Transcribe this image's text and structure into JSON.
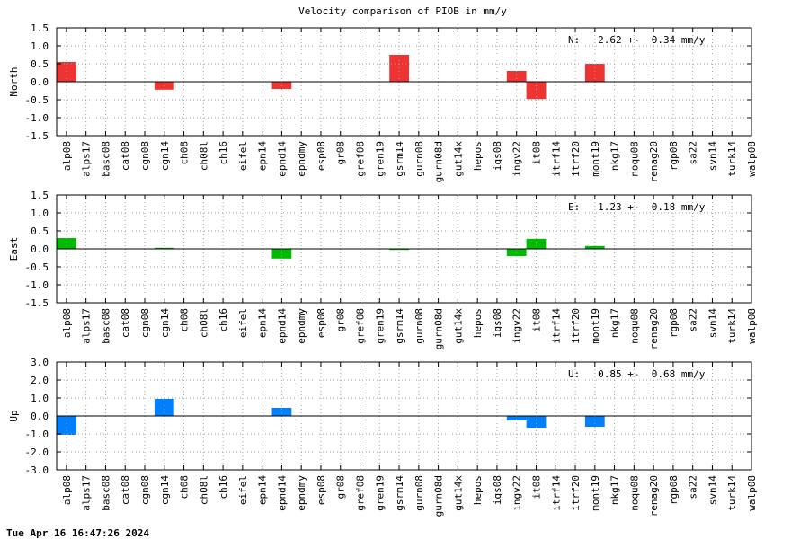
{
  "title": "Velocity comparison of PIOB in mm/y",
  "timestamp": "Tue Apr 16 16:47:26 2024",
  "chart_data": [
    {
      "type": "bar",
      "ylabel": "North",
      "ylim": [
        -1.5,
        1.5
      ],
      "yticks": [
        1.5,
        1.0,
        0.5,
        0.0,
        -0.5,
        -1.0,
        -1.5
      ],
      "ytick_labels": [
        "1.5",
        "1.0",
        "0.5",
        "0.0",
        "-0.5",
        "-1.0",
        "-1.5"
      ],
      "grid": true,
      "color": "#ee3333",
      "stats": "N:   2.62 +-  0.34 mm/y",
      "categories": [
        "alp08",
        "alps17",
        "basc08",
        "cat08",
        "cgn08",
        "cgn14",
        "ch08",
        "ch08l",
        "ch16",
        "eifel",
        "epn14",
        "epnd14",
        "epndmy",
        "esp08",
        "gr08",
        "gref08",
        "gren19",
        "gsrm14",
        "gurn08",
        "gurn08d",
        "gut14x",
        "hepos",
        "igs08",
        "ingv22",
        "it08",
        "itrf14",
        "itrf20",
        "mont19",
        "nkg17",
        "noqu08",
        "renag20",
        "rgp08",
        "sa22",
        "svn14",
        "turk14",
        "walp08"
      ],
      "values": [
        0.55,
        0,
        0,
        0,
        0,
        -0.22,
        0,
        0,
        0,
        0,
        0,
        -0.2,
        0,
        0,
        0,
        0,
        0,
        0.75,
        0,
        0,
        0,
        0,
        0,
        0.3,
        -0.48,
        0,
        0,
        0.5,
        0,
        0,
        0,
        0,
        0,
        0,
        0,
        0
      ]
    },
    {
      "type": "bar",
      "ylabel": "East",
      "ylim": [
        -1.5,
        1.5
      ],
      "yticks": [
        1.5,
        1.0,
        0.5,
        0.0,
        -0.5,
        -1.0,
        -1.5
      ],
      "ytick_labels": [
        "1.5",
        "1.0",
        "0.5",
        "0.0",
        "-0.5",
        "-1.0",
        "-1.5"
      ],
      "grid": true,
      "color": "#00bb00",
      "stats": "E:   1.23 +-  0.18 mm/y",
      "categories": [
        "alp08",
        "alps17",
        "basc08",
        "cat08",
        "cgn08",
        "cgn14",
        "ch08",
        "ch08l",
        "ch16",
        "eifel",
        "epn14",
        "epnd14",
        "epndmy",
        "esp08",
        "gr08",
        "gref08",
        "gren19",
        "gsrm14",
        "gurn08",
        "gurn08d",
        "gut14x",
        "hepos",
        "igs08",
        "ingv22",
        "it08",
        "itrf14",
        "itrf20",
        "mont19",
        "nkg17",
        "noqu08",
        "renag20",
        "rgp08",
        "sa22",
        "svn14",
        "turk14",
        "walp08"
      ],
      "values": [
        0.3,
        0,
        0,
        0,
        0,
        0.03,
        0,
        0,
        0,
        0,
        0,
        -0.27,
        0,
        0,
        0,
        0,
        0,
        -0.03,
        0,
        0,
        0,
        0,
        0,
        -0.2,
        0.28,
        0,
        0,
        0.08,
        0,
        0,
        0,
        0,
        0,
        0,
        0,
        0
      ]
    },
    {
      "type": "bar",
      "ylabel": "Up",
      "ylim": [
        -3.0,
        3.0
      ],
      "yticks": [
        3.0,
        2.0,
        1.0,
        0.0,
        -1.0,
        -2.0,
        -3.0
      ],
      "ytick_labels": [
        "3.0",
        "2.0",
        "1.0",
        "0.0",
        "-1.0",
        "-2.0",
        "-3.0"
      ],
      "grid": true,
      "color": "#0080ff",
      "stats": "U:   0.85 +-  0.68 mm/y",
      "categories": [
        "alp08",
        "alps17",
        "basc08",
        "cat08",
        "cgn08",
        "cgn14",
        "ch08",
        "ch08l",
        "ch16",
        "eifel",
        "epn14",
        "epnd14",
        "epndmy",
        "esp08",
        "gr08",
        "gref08",
        "gren19",
        "gsrm14",
        "gurn08",
        "gurn08d",
        "gut14x",
        "hepos",
        "igs08",
        "ingv22",
        "it08",
        "itrf14",
        "itrf20",
        "mont19",
        "nkg17",
        "noqu08",
        "renag20",
        "rgp08",
        "sa22",
        "svn14",
        "turk14",
        "walp08"
      ],
      "values": [
        -1.05,
        0,
        0,
        0,
        0,
        0.95,
        0,
        0,
        0,
        0,
        0,
        0.45,
        0,
        0,
        0,
        0,
        0,
        0,
        0,
        0,
        0,
        0,
        0,
        -0.25,
        -0.65,
        0,
        0,
        -0.6,
        0,
        0,
        0,
        0,
        0,
        0,
        0,
        0
      ]
    }
  ]
}
